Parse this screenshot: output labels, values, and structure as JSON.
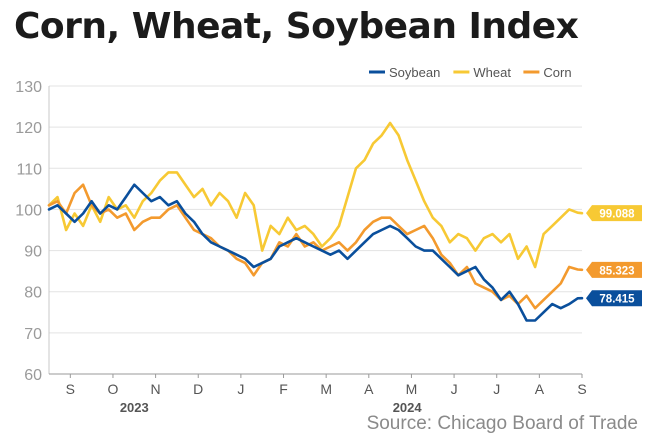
{
  "title": "Corn, Wheat, Soybean Index",
  "source": "Source: Chicago Board of Trade",
  "chart_data": {
    "type": "line",
    "title": "Corn, Wheat, Soybean Index",
    "xlabel": "",
    "ylabel": "",
    "ylim": [
      60,
      130
    ],
    "yticks": [
      60,
      70,
      80,
      90,
      100,
      110,
      120,
      130
    ],
    "xlim": [
      0,
      12.5
    ],
    "x_ticks": [
      {
        "label": "S",
        "x": 0.5
      },
      {
        "label": "O",
        "x": 1.5
      },
      {
        "label": "N",
        "x": 2.5
      },
      {
        "label": "D",
        "x": 3.5
      },
      {
        "label": "J",
        "x": 4.5
      },
      {
        "label": "F",
        "x": 5.5
      },
      {
        "label": "M",
        "x": 6.5
      },
      {
        "label": "A",
        "x": 7.5
      },
      {
        "label": "M",
        "x": 8.5
      },
      {
        "label": "J",
        "x": 9.5
      },
      {
        "label": "J",
        "x": 10.5
      },
      {
        "label": "A",
        "x": 11.5
      },
      {
        "label": "S",
        "x": 12.5
      }
    ],
    "year_labels": [
      {
        "label": "2023",
        "x": 2.0
      },
      {
        "label": "2024",
        "x": 8.4
      }
    ],
    "legend_position": "top-right",
    "series": [
      {
        "name": "Soybean",
        "color": "#0a4f9c",
        "end_label": "78.415",
        "x": [
          0,
          0.2,
          0.4,
          0.6,
          0.8,
          1.0,
          1.2,
          1.4,
          1.6,
          1.8,
          2.0,
          2.2,
          2.4,
          2.6,
          2.8,
          3.0,
          3.2,
          3.4,
          3.6,
          3.8,
          4.0,
          4.2,
          4.4,
          4.6,
          4.8,
          5.0,
          5.2,
          5.4,
          5.6,
          5.8,
          6.0,
          6.2,
          6.4,
          6.6,
          6.8,
          7.0,
          7.2,
          7.4,
          7.6,
          7.8,
          8.0,
          8.2,
          8.4,
          8.6,
          8.8,
          9.0,
          9.2,
          9.4,
          9.6,
          9.8,
          10.0,
          10.2,
          10.4,
          10.6,
          10.8,
          11.0,
          11.2,
          11.4,
          11.6,
          11.8,
          12.0,
          12.2,
          12.4,
          12.5
        ],
        "values": [
          100,
          101,
          99,
          97,
          99,
          102,
          99,
          101,
          100,
          103,
          106,
          104,
          102,
          103,
          101,
          102,
          99,
          97,
          94,
          92,
          91,
          90,
          89,
          88,
          86,
          87,
          88,
          91,
          92,
          93,
          92,
          91,
          90,
          89,
          90,
          88,
          90,
          92,
          94,
          95,
          96,
          95,
          93,
          91,
          90,
          90,
          88,
          86,
          84,
          85,
          86,
          83,
          81,
          78,
          80,
          77,
          73,
          73,
          75,
          77,
          76,
          77,
          78.4,
          78.415
        ]
      },
      {
        "name": "Wheat",
        "color": "#f7c934",
        "end_label": "99.088",
        "x": [
          0,
          0.2,
          0.4,
          0.6,
          0.8,
          1.0,
          1.2,
          1.4,
          1.6,
          1.8,
          2.0,
          2.2,
          2.4,
          2.6,
          2.8,
          3.0,
          3.2,
          3.4,
          3.6,
          3.8,
          4.0,
          4.2,
          4.4,
          4.6,
          4.8,
          5.0,
          5.2,
          5.4,
          5.6,
          5.8,
          6.0,
          6.2,
          6.4,
          6.6,
          6.8,
          7.0,
          7.2,
          7.4,
          7.6,
          7.8,
          8.0,
          8.2,
          8.4,
          8.6,
          8.8,
          9.0,
          9.2,
          9.4,
          9.6,
          9.8,
          10.0,
          10.2,
          10.4,
          10.6,
          10.8,
          11.0,
          11.2,
          11.4,
          11.6,
          11.8,
          12.0,
          12.2,
          12.4,
          12.5
        ],
        "values": [
          101,
          103,
          95,
          99,
          96,
          101,
          97,
          103,
          100,
          101,
          98,
          102,
          104,
          107,
          109,
          109,
          106,
          103,
          105,
          101,
          104,
          102,
          98,
          104,
          101,
          90,
          96,
          94,
          98,
          95,
          96,
          94,
          91,
          93,
          96,
          103,
          110,
          112,
          116,
          118,
          121,
          118,
          112,
          107,
          102,
          98,
          96,
          92,
          94,
          93,
          90,
          93,
          94,
          92,
          94,
          88,
          91,
          86,
          94,
          96,
          98,
          100,
          99.2,
          99.088
        ]
      },
      {
        "name": "Corn",
        "color": "#f39a2e",
        "end_label": "85.323",
        "x": [
          0,
          0.2,
          0.4,
          0.6,
          0.8,
          1.0,
          1.2,
          1.4,
          1.6,
          1.8,
          2.0,
          2.2,
          2.4,
          2.6,
          2.8,
          3.0,
          3.2,
          3.4,
          3.6,
          3.8,
          4.0,
          4.2,
          4.4,
          4.6,
          4.8,
          5.0,
          5.2,
          5.4,
          5.6,
          5.8,
          6.0,
          6.2,
          6.4,
          6.6,
          6.8,
          7.0,
          7.2,
          7.4,
          7.6,
          7.8,
          8.0,
          8.2,
          8.4,
          8.6,
          8.8,
          9.0,
          9.2,
          9.4,
          9.6,
          9.8,
          10.0,
          10.2,
          10.4,
          10.6,
          10.8,
          11.0,
          11.2,
          11.4,
          11.6,
          11.8,
          12.0,
          12.2,
          12.4,
          12.5
        ],
        "values": [
          101,
          102,
          99,
          104,
          106,
          101,
          99,
          100,
          98,
          99,
          95,
          97,
          98,
          98,
          100,
          101,
          98,
          95,
          94,
          93,
          91,
          90,
          88,
          87,
          84,
          87,
          88,
          92,
          91,
          94,
          91,
          92,
          90,
          91,
          92,
          90,
          92,
          95,
          97,
          98,
          98,
          96,
          94,
          95,
          96,
          93,
          89,
          87,
          84,
          86,
          82,
          81,
          80,
          78,
          79,
          77,
          79,
          76,
          78,
          80,
          82,
          86,
          85.4,
          85.323
        ]
      }
    ]
  }
}
